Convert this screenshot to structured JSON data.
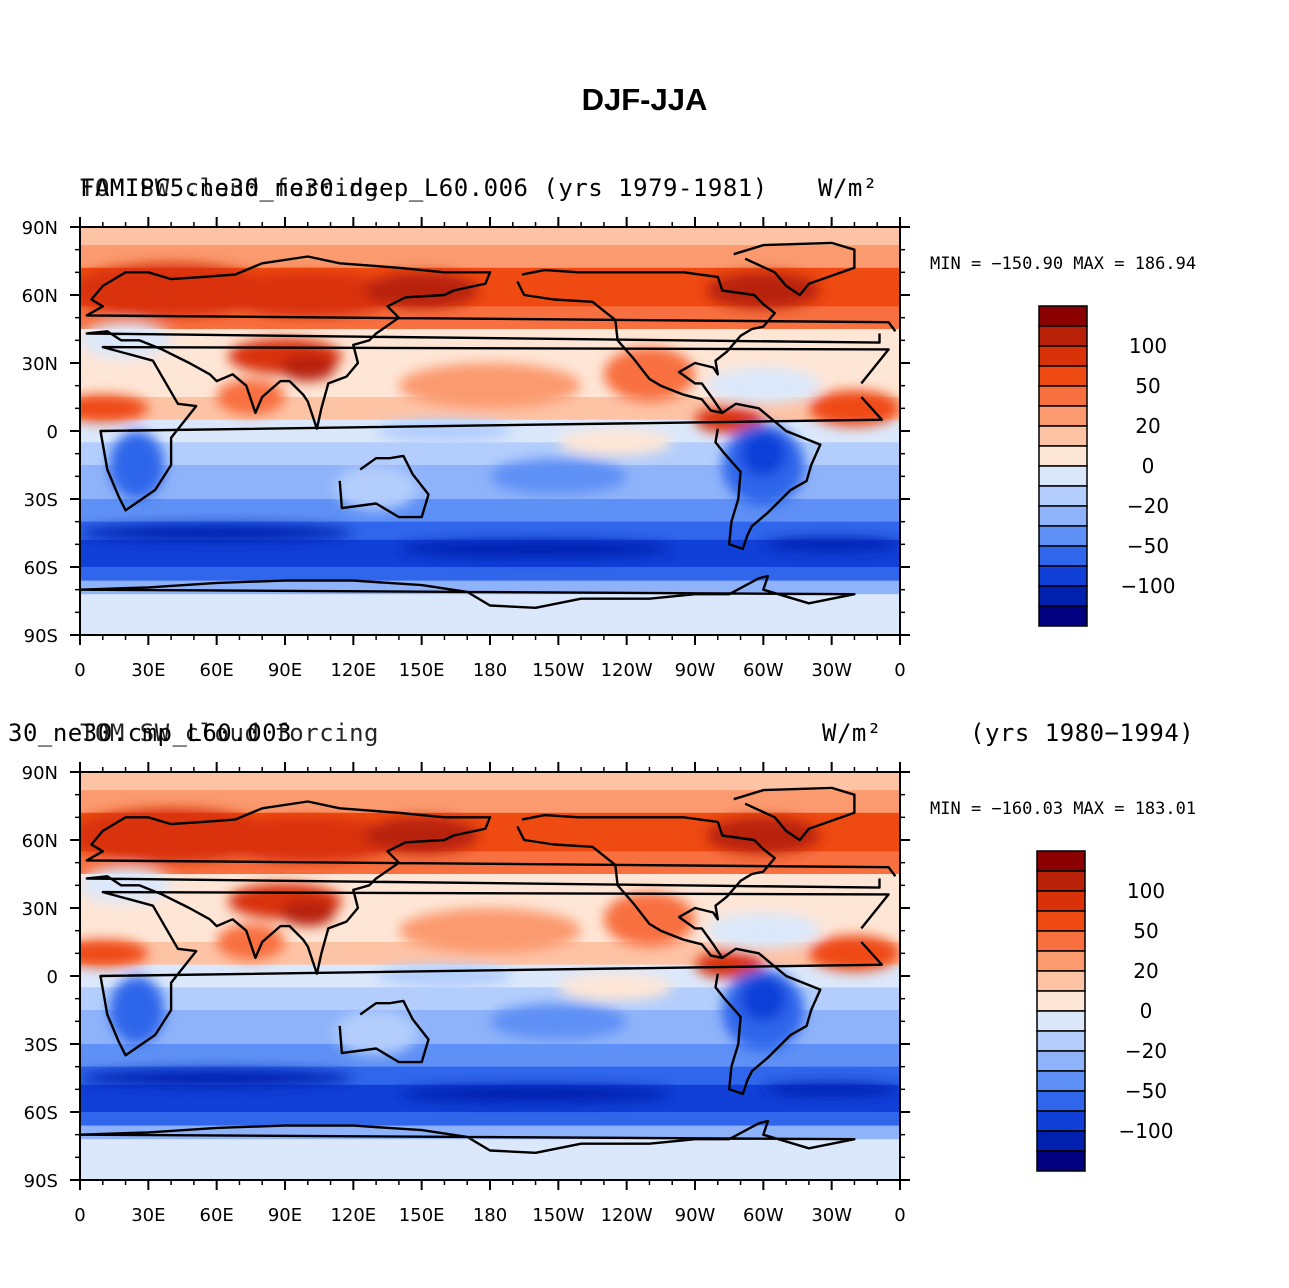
{
  "title": "DJF-JJA",
  "panels": [
    {
      "case_label": "FAMIPC5.ne30_ne30.deep_L60.006 (yrs 1979-1981)",
      "var_label": "TOM SW cloud forcing",
      "units": "W/m²",
      "period": "",
      "stats": "MIN = −150.90  MAX = 186.94"
    },
    {
      "case_label": "30_ne30.cmp_L60.003",
      "var_label": "TOM SW cloud forcing",
      "units": "W/m²",
      "period": "(yrs 1980−1994)",
      "stats": "MIN = −160.03  MAX = 183.01"
    }
  ],
  "axes": {
    "lat_ticks": [
      "90N",
      "60N",
      "30N",
      "0",
      "30S",
      "60S",
      "90S"
    ],
    "lon_ticks": [
      "0",
      "30E",
      "60E",
      "90E",
      "120E",
      "150E",
      "180",
      "150W",
      "120W",
      "90W",
      "60W",
      "30W",
      "0"
    ]
  },
  "colorbar": {
    "labels": [
      "100",
      "50",
      "20",
      "0",
      "−20",
      "−50",
      "−100"
    ],
    "colors": [
      "#8b0000",
      "#b82008",
      "#d93208",
      "#ef4a12",
      "#f87040",
      "#fb9a6e",
      "#fdc3a5",
      "#fee6d6",
      "#dbe8fb",
      "#b3cefc",
      "#8fb3fa",
      "#5e90f5",
      "#2f66eb",
      "#1040d8",
      "#0020b0",
      "#000080"
    ]
  },
  "chart_data": {
    "type": "heatmap",
    "projection": "cylindrical equidistant",
    "lat_range": [
      -90,
      90
    ],
    "lon_range": [
      0,
      360
    ],
    "contour_levels": [
      -100,
      -75,
      -50,
      -35,
      -20,
      -10,
      0,
      10,
      20,
      35,
      50,
      75,
      100
    ],
    "colorbar_labels": [
      100,
      50,
      20,
      0,
      -20,
      -50,
      -100
    ]
  }
}
